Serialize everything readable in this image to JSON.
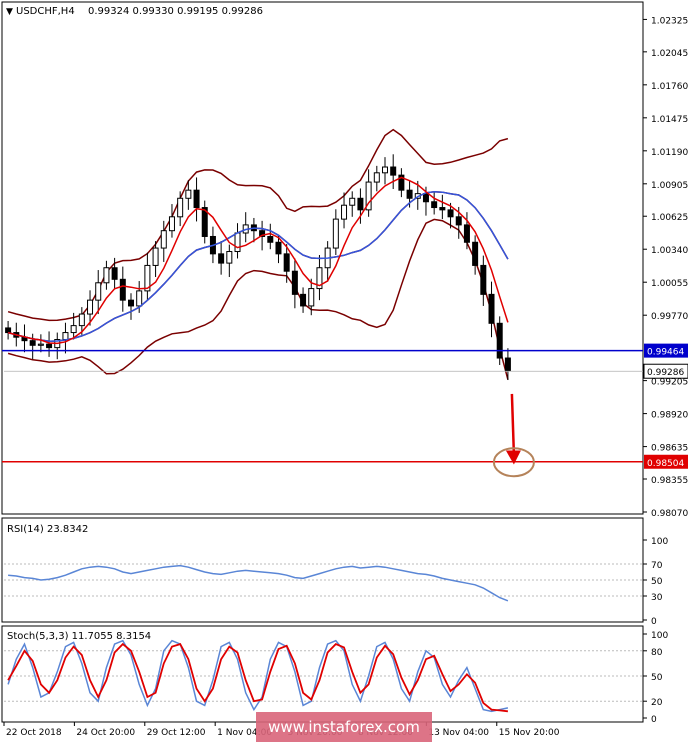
{
  "header": {
    "symbol": "USDCHF,H4",
    "ohlc": "0.99324 0.99330 0.99195 0.99286"
  },
  "watermark": "www.instaforex.com",
  "colors": {
    "candle": "#000000",
    "bollinger": "#7a0000",
    "ma_fast": "#e00000",
    "ma_slow": "#3355dd",
    "support_line": "#0000cc",
    "target_line": "#e00000",
    "arrow": "#e00000",
    "circle": "#b5835a",
    "rsi_line": "#5a86d6",
    "stoch_main": "#5a86d6",
    "stoch_signal": "#e00000"
  },
  "chart_data": [
    {
      "type": "candlestick",
      "title": "USDCHF,H4",
      "ylim": [
        0.9807,
        1.0232
      ],
      "y_ticks": [
        1.02325,
        1.02045,
        1.0176,
        1.01475,
        1.0119,
        1.00905,
        1.00625,
        1.0034,
        1.00055,
        0.9977,
        0.99205,
        0.9892,
        0.98635,
        0.98355,
        0.9807
      ],
      "y_tick_labels": [
        "1.02325",
        "1.02045",
        "1.01760",
        "1.01475",
        "1.01190",
        "1.00905",
        "1.00625",
        "1.00340",
        "1.00055",
        "0.99770",
        "0.99205",
        "0.98920",
        "0.98635",
        "0.98355",
        "0.98070"
      ],
      "x_labels": [
        "22 Oct 2018",
        "24 Oct 20:00",
        "29 Oct 12:00",
        "1 Nov 04:00",
        "5 Nov 20:00",
        "8 Nov 12:00",
        "13 Nov 04:00",
        "15 Nov 20:00"
      ],
      "close_series": [
        0.9962,
        0.9958,
        0.9955,
        0.9951,
        0.9952,
        0.9949,
        0.9956,
        0.9962,
        0.9968,
        0.9978,
        0.999,
        1.0005,
        1.0018,
        1.0008,
        0.999,
        0.9985,
        0.9998,
        1.002,
        1.0035,
        1.005,
        1.0062,
        1.0078,
        1.0085,
        1.007,
        1.0045,
        1.003,
        1.0022,
        1.0032,
        1.0048,
        1.0055,
        1.005,
        1.0045,
        1.004,
        1.003,
        1.0015,
        0.9995,
        0.9985,
        1.0,
        1.0018,
        1.0035,
        1.006,
        1.0072,
        1.0078,
        1.0068,
        1.0092,
        1.01,
        1.0105,
        1.0098,
        1.0085,
        1.0078,
        1.0082,
        1.0075,
        1.007,
        1.0068,
        1.0062,
        1.0055,
        1.004,
        1.002,
        0.9995,
        0.997,
        0.994,
        0.9929
      ],
      "horizontal_lines": [
        {
          "label": "0.99464",
          "value": 0.99464,
          "role": "support"
        },
        {
          "label": "0.98504",
          "value": 0.98504,
          "role": "target"
        }
      ],
      "current_price_label": "0.99286",
      "current_price": 0.99286,
      "arrow": {
        "from_price": 0.9909,
        "to_price": 0.9848
      },
      "target_marker_price": 0.985,
      "indicators": [
        "Bollinger Bands",
        "Moving Average (fast)",
        "Moving Average (slow)"
      ]
    },
    {
      "type": "line",
      "title": "RSI(14) 23.8342",
      "ylim": [
        0,
        100
      ],
      "y_tick_labels": [
        "100",
        "70",
        "50",
        "30",
        "0"
      ],
      "levels": [
        70,
        50,
        30
      ],
      "values": [
        56,
        55,
        53,
        52,
        50,
        51,
        53,
        56,
        60,
        64,
        66,
        67,
        66,
        64,
        60,
        58,
        60,
        62,
        64,
        66,
        67,
        68,
        66,
        63,
        60,
        58,
        57,
        59,
        61,
        62,
        61,
        60,
        59,
        58,
        56,
        53,
        52,
        55,
        58,
        61,
        64,
        66,
        67,
        65,
        66,
        67,
        66,
        64,
        62,
        60,
        58,
        57,
        55,
        52,
        50,
        48,
        46,
        44,
        40,
        34,
        28,
        24
      ]
    },
    {
      "type": "line",
      "title": "Stoch(5,3,3) 11.7055 8.3154",
      "ylim": [
        0,
        100
      ],
      "y_tick_labels": [
        "100",
        "80",
        "50",
        "20",
        "0"
      ],
      "levels": [
        80,
        50,
        20
      ],
      "main": [
        40,
        70,
        88,
        60,
        25,
        30,
        55,
        85,
        90,
        65,
        30,
        20,
        60,
        88,
        92,
        75,
        40,
        15,
        35,
        80,
        92,
        88,
        60,
        20,
        15,
        45,
        85,
        90,
        70,
        30,
        10,
        25,
        70,
        90,
        85,
        55,
        15,
        20,
        60,
        88,
        92,
        80,
        40,
        20,
        50,
        85,
        90,
        70,
        35,
        20,
        55,
        80,
        72,
        40,
        25,
        45,
        60,
        35,
        10,
        8,
        10,
        12
      ],
      "signal": [
        45,
        62,
        80,
        68,
        40,
        30,
        45,
        72,
        85,
        75,
        45,
        25,
        45,
        78,
        88,
        80,
        55,
        25,
        30,
        65,
        85,
        88,
        70,
        35,
        20,
        35,
        70,
        85,
        78,
        45,
        20,
        22,
        55,
        82,
        86,
        65,
        30,
        22,
        45,
        78,
        88,
        84,
        55,
        30,
        40,
        72,
        86,
        76,
        48,
        28,
        45,
        70,
        74,
        52,
        32,
        40,
        52,
        42,
        18,
        10,
        9,
        8
      ]
    }
  ]
}
